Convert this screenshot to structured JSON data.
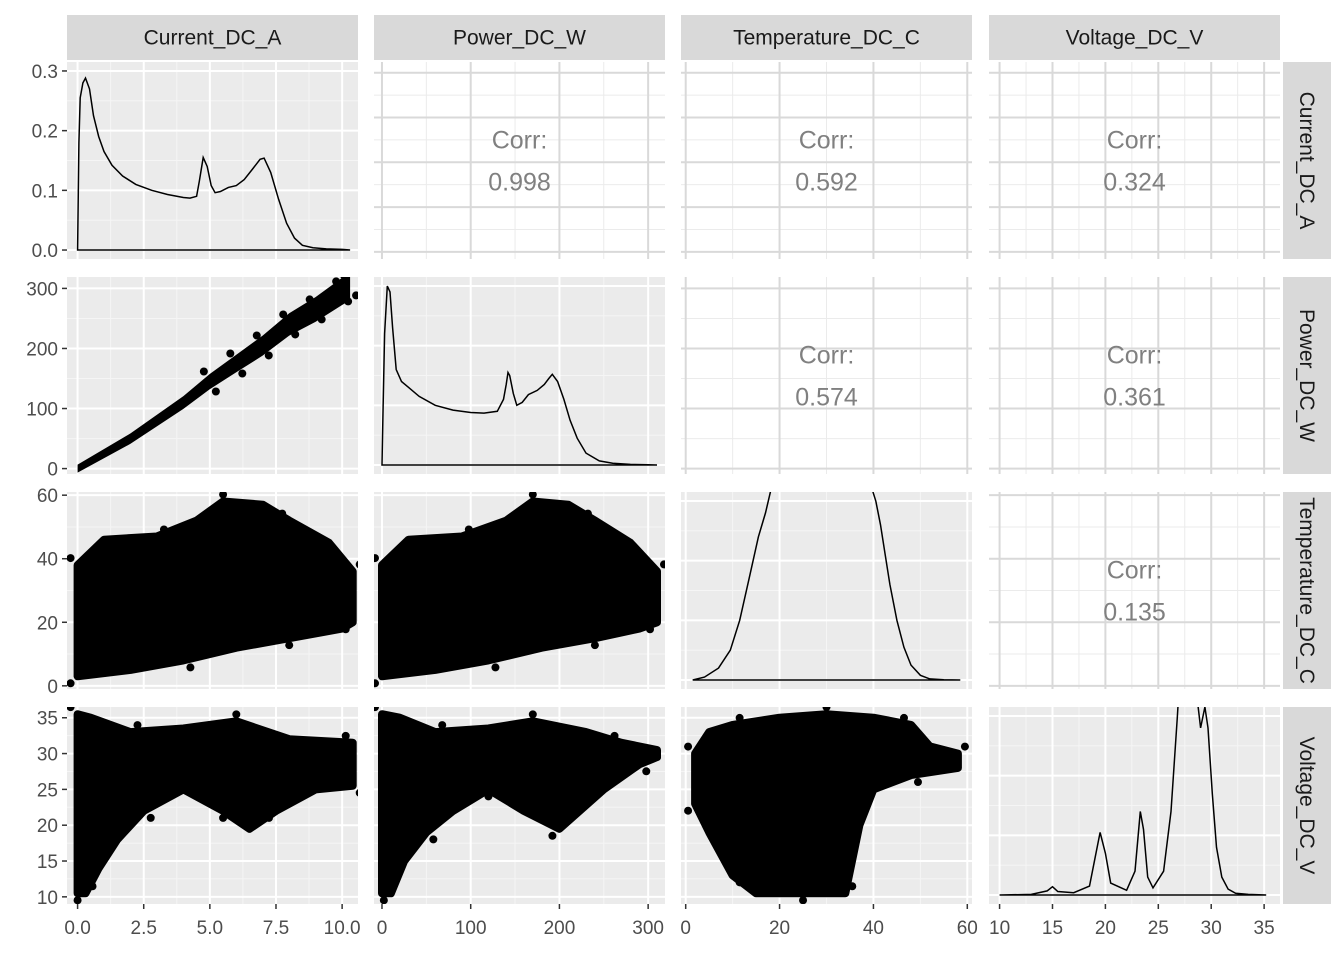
{
  "chart_data": {
    "type": "scatter-matrix",
    "variables": [
      "Current_DC_A",
      "Power_DC_W",
      "Temperature_DC_C",
      "Voltage_DC_V"
    ],
    "axes": [
      {
        "name": "Current_DC_A",
        "range": [
          -0.4,
          10.6
        ],
        "ticks": [
          0,
          2.5,
          5,
          7.5,
          10
        ],
        "tick_labels": [
          "0.0",
          "2.5",
          "5.0",
          "7.5",
          "10.0"
        ]
      },
      {
        "name": "Power_DC_W",
        "range": [
          -9,
          319
        ],
        "ticks": [
          0,
          100,
          200,
          300
        ],
        "tick_labels": [
          "0",
          "100",
          "200",
          "300"
        ]
      },
      {
        "name": "Temperature_DC_C",
        "range": [
          -1,
          61
        ],
        "ticks": [
          0,
          20,
          40,
          60
        ],
        "tick_labels": [
          "0",
          "20",
          "40",
          "60"
        ]
      },
      {
        "name": "Voltage_DC_V",
        "range": [
          9,
          36.5
        ],
        "ticks": [
          10,
          15,
          20,
          25,
          30,
          35
        ],
        "tick_labels": [
          "10",
          "15",
          "20",
          "25",
          "30",
          "35"
        ]
      }
    ],
    "density_y_axis": {
      "range": [
        -0.015,
        0.315
      ],
      "ticks": [
        0,
        0.1,
        0.2,
        0.3
      ],
      "tick_labels": [
        "0.0",
        "0.1",
        "0.2",
        "0.3"
      ]
    },
    "correlation_label": "Corr:",
    "correlations": [
      {
        "row": 0,
        "col": 1,
        "value": "0.998"
      },
      {
        "row": 0,
        "col": 2,
        "value": "0.592"
      },
      {
        "row": 0,
        "col": 3,
        "value": "0.324"
      },
      {
        "row": 1,
        "col": 2,
        "value": "0.574"
      },
      {
        "row": 1,
        "col": 3,
        "value": "0.361"
      },
      {
        "row": 2,
        "col": 3,
        "value": "0.135"
      }
    ],
    "densities": [
      {
        "variable": "Current_DC_A",
        "x": [
          0,
          0.05,
          0.1,
          0.2,
          0.3,
          0.45,
          0.6,
          0.8,
          1.0,
          1.3,
          1.7,
          2.2,
          2.8,
          3.4,
          4.0,
          4.25,
          4.5,
          4.6,
          4.75,
          4.9,
          5.05,
          5.2,
          5.4,
          5.7,
          6.0,
          6.3,
          6.6,
          6.9,
          7.05,
          7.3,
          7.6,
          7.9,
          8.2,
          8.5,
          8.9,
          9.4,
          10.0,
          10.3
        ],
        "y": [
          0,
          0.18,
          0.255,
          0.28,
          0.288,
          0.27,
          0.225,
          0.19,
          0.165,
          0.142,
          0.124,
          0.11,
          0.1,
          0.093,
          0.088,
          0.087,
          0.09,
          0.115,
          0.155,
          0.14,
          0.108,
          0.096,
          0.098,
          0.105,
          0.108,
          0.118,
          0.135,
          0.152,
          0.154,
          0.13,
          0.085,
          0.045,
          0.02,
          0.008,
          0.004,
          0.002,
          0.001,
          0
        ]
      },
      {
        "variable": "Power_DC_W",
        "x": [
          0,
          1,
          3,
          6,
          9,
          12,
          16,
          22,
          30,
          42,
          60,
          80,
          100,
          115,
          130,
          137,
          140,
          142,
          144,
          148,
          152,
          158,
          165,
          175,
          183,
          188,
          192,
          198,
          205,
          212,
          220,
          230,
          245,
          260,
          280,
          300,
          310
        ],
        "y": [
          0,
          0.08,
          0.22,
          0.3,
          0.29,
          0.23,
          0.16,
          0.14,
          0.13,
          0.115,
          0.1,
          0.092,
          0.088,
          0.087,
          0.09,
          0.11,
          0.135,
          0.155,
          0.15,
          0.12,
          0.1,
          0.105,
          0.118,
          0.125,
          0.135,
          0.145,
          0.152,
          0.14,
          0.11,
          0.075,
          0.045,
          0.02,
          0.007,
          0.003,
          0.001,
          0.0005,
          0
        ]
      },
      {
        "variable": "Temperature_DC_C",
        "x": [
          1.5,
          4,
          7,
          9.5,
          11.5,
          13.5,
          15.5,
          17,
          18.2,
          19.2,
          20,
          21,
          22.5,
          24,
          25.5,
          27,
          29,
          31,
          33,
          35,
          36.5,
          38,
          39.5,
          40.5,
          41.5,
          42.5,
          43.5,
          45,
          46.5,
          48,
          50,
          52,
          55,
          58.5
        ],
        "y": [
          0,
          0.005,
          0.02,
          0.05,
          0.1,
          0.17,
          0.24,
          0.28,
          0.32,
          0.35,
          0.357,
          0.345,
          0.34,
          0.335,
          0.332,
          0.34,
          0.35,
          0.357,
          0.36,
          0.36,
          0.354,
          0.345,
          0.325,
          0.3,
          0.26,
          0.21,
          0.16,
          0.1,
          0.055,
          0.025,
          0.008,
          0.002,
          0.0005,
          0
        ]
      },
      {
        "variable": "Voltage_DC_V",
        "x": [
          10,
          13,
          14.5,
          15,
          15.5,
          17,
          18.5,
          19,
          19.5,
          20,
          20.5,
          22,
          22.8,
          23.3,
          23.6,
          24.0,
          24.5,
          25.5,
          26.2,
          26.8,
          27.3,
          27.6,
          27.9,
          28.2,
          28.6,
          29.0,
          29.4,
          29.7,
          30.1,
          30.5,
          31.0,
          31.6,
          32.3,
          33.5,
          35.2
        ],
        "y": [
          0,
          0.001,
          0.007,
          0.014,
          0.006,
          0.004,
          0.015,
          0.06,
          0.105,
          0.07,
          0.02,
          0.008,
          0.04,
          0.14,
          0.11,
          0.03,
          0.012,
          0.04,
          0.14,
          0.3,
          0.448,
          0.43,
          0.44,
          0.415,
          0.34,
          0.28,
          0.315,
          0.28,
          0.17,
          0.08,
          0.03,
          0.01,
          0.003,
          0.001,
          0
        ]
      }
    ],
    "scatter_summaries": [
      {
        "row": 1,
        "col": 0,
        "description_points": [
          [
            0,
            0
          ],
          [
            2,
            50
          ],
          [
            4,
            110
          ],
          [
            5,
            145
          ],
          [
            6,
            175
          ],
          [
            7,
            205
          ],
          [
            8,
            240
          ],
          [
            9,
            265
          ],
          [
            10,
            295
          ],
          [
            10.3,
            305
          ]
        ],
        "band": 12
      },
      {
        "row": 2,
        "col": 0,
        "lower": [
          [
            0,
            3
          ],
          [
            2,
            5
          ],
          [
            4,
            8
          ],
          [
            6,
            12
          ],
          [
            8,
            15
          ],
          [
            10,
            18
          ],
          [
            10.4,
            20
          ]
        ],
        "upper": [
          [
            0,
            38
          ],
          [
            1,
            46
          ],
          [
            3,
            47
          ],
          [
            4.5,
            52
          ],
          [
            5.5,
            58
          ],
          [
            7,
            57
          ],
          [
            8,
            52
          ],
          [
            9.5,
            45
          ],
          [
            10.4,
            36
          ]
        ]
      },
      {
        "row": 2,
        "col": 1,
        "lower": [
          [
            0,
            3
          ],
          [
            60,
            5
          ],
          [
            120,
            8
          ],
          [
            180,
            12
          ],
          [
            240,
            15
          ],
          [
            290,
            18
          ],
          [
            310,
            20
          ]
        ],
        "upper": [
          [
            0,
            38
          ],
          [
            30,
            46
          ],
          [
            90,
            47
          ],
          [
            140,
            52
          ],
          [
            170,
            58
          ],
          [
            210,
            57
          ],
          [
            240,
            52
          ],
          [
            280,
            45
          ],
          [
            310,
            36
          ]
        ]
      },
      {
        "row": 3,
        "col": 0,
        "lower": [
          [
            0,
            10.5
          ],
          [
            0.3,
            10.5
          ],
          [
            0.8,
            14
          ],
          [
            1.5,
            18
          ],
          [
            2.5,
            22
          ],
          [
            4,
            25
          ],
          [
            5.5,
            22
          ],
          [
            6.5,
            19.5
          ],
          [
            7.5,
            22
          ],
          [
            9,
            25
          ],
          [
            10.4,
            25.5
          ]
        ],
        "upper": [
          [
            0,
            35.5
          ],
          [
            0.5,
            35
          ],
          [
            2,
            33
          ],
          [
            4,
            33.5
          ],
          [
            6,
            34.5
          ],
          [
            8,
            32
          ],
          [
            10.4,
            31.5
          ]
        ]
      },
      {
        "row": 3,
        "col": 1,
        "lower": [
          [
            0,
            10.5
          ],
          [
            10,
            10.5
          ],
          [
            25,
            15
          ],
          [
            50,
            19
          ],
          [
            80,
            22
          ],
          [
            120,
            25
          ],
          [
            160,
            22
          ],
          [
            200,
            19.5
          ],
          [
            250,
            25
          ],
          [
            290,
            28.5
          ],
          [
            310,
            29.5
          ]
        ],
        "upper": [
          [
            0,
            35.5
          ],
          [
            20,
            35
          ],
          [
            60,
            33
          ],
          [
            120,
            33.5
          ],
          [
            170,
            34.5
          ],
          [
            230,
            33
          ],
          [
            270,
            31.5
          ],
          [
            310,
            30.5
          ]
        ]
      },
      {
        "row": 3,
        "col": 2,
        "lower": [
          [
            2,
            23
          ],
          [
            5,
            19
          ],
          [
            10,
            13
          ],
          [
            15,
            10.5
          ],
          [
            25,
            10.5
          ],
          [
            34,
            10.5
          ],
          [
            37,
            20
          ],
          [
            40,
            25
          ],
          [
            48,
            27
          ],
          [
            58,
            28
          ]
        ],
        "upper": [
          [
            2,
            30
          ],
          [
            5,
            33
          ],
          [
            10,
            34
          ],
          [
            20,
            35
          ],
          [
            30,
            35.5
          ],
          [
            40,
            35
          ],
          [
            48,
            34
          ],
          [
            52,
            31
          ],
          [
            58,
            30
          ]
        ]
      }
    ]
  }
}
